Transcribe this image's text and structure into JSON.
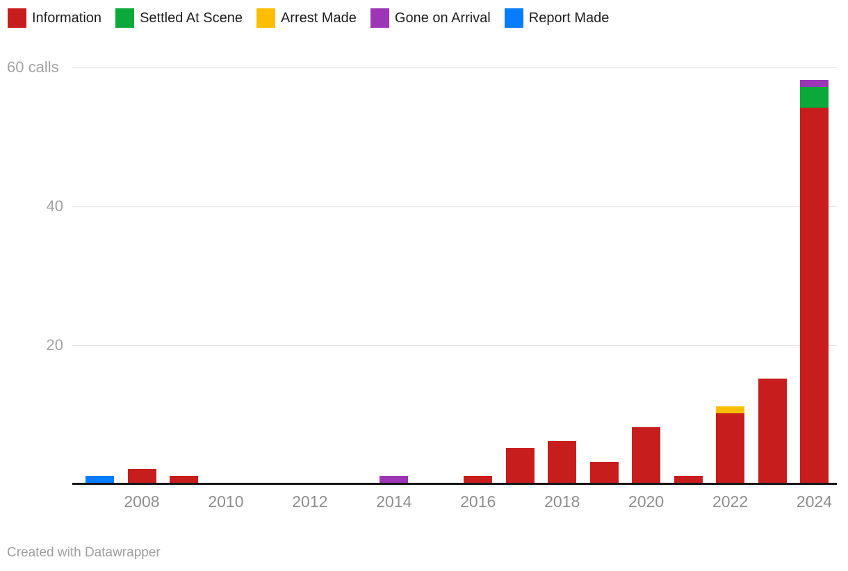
{
  "legend": {
    "items": [
      {
        "label": "Information",
        "color": "#c71d1d",
        "icon": "red-swatch-icon"
      },
      {
        "label": "Settled At Scene",
        "color": "#0ba83a",
        "icon": "green-swatch-icon"
      },
      {
        "label": "Arrest Made",
        "color": "#fdbe02",
        "icon": "yellow-swatch-icon"
      },
      {
        "label": "Gone on Arrival",
        "color": "#9c36b6",
        "icon": "purple-swatch-icon"
      },
      {
        "label": "Report Made",
        "color": "#077cfd",
        "icon": "blue-swatch-icon"
      }
    ]
  },
  "chart_data": {
    "type": "bar",
    "stacked": true,
    "title": "",
    "unit": "calls",
    "categories": [
      2007,
      2008,
      2009,
      2010,
      2011,
      2012,
      2013,
      2014,
      2015,
      2016,
      2017,
      2018,
      2019,
      2020,
      2021,
      2022,
      2023,
      2024
    ],
    "series": [
      {
        "name": "Information",
        "color": "#c71d1d",
        "values": [
          0,
          2,
          1,
          0,
          0,
          0,
          0,
          0,
          0,
          1,
          5,
          6,
          3,
          8,
          1,
          10,
          15,
          54
        ]
      },
      {
        "name": "Settled At Scene",
        "color": "#0ba83a",
        "values": [
          0,
          0,
          0,
          0,
          0,
          0,
          0,
          0,
          0,
          0,
          0,
          0,
          0,
          0,
          0,
          0,
          0,
          3
        ]
      },
      {
        "name": "Arrest Made",
        "color": "#fdbe02",
        "values": [
          0,
          0,
          0,
          0,
          0,
          0,
          0,
          0,
          0,
          0,
          0,
          0,
          0,
          0,
          0,
          1,
          0,
          0
        ]
      },
      {
        "name": "Gone on Arrival",
        "color": "#9c36b6",
        "values": [
          0,
          0,
          0,
          0,
          0,
          0,
          0,
          1,
          0,
          0,
          0,
          0,
          0,
          0,
          0,
          0,
          0,
          1
        ]
      },
      {
        "name": "Report Made",
        "color": "#077cfd",
        "values": [
          1,
          0,
          0,
          0,
          0,
          0,
          0,
          0,
          0,
          0,
          0,
          0,
          0,
          0,
          0,
          0,
          0,
          0
        ]
      }
    ],
    "ylim": [
      0,
      60
    ],
    "y_ticks": [
      {
        "value": 60,
        "label": "60 calls",
        "align": "left"
      },
      {
        "value": 40,
        "label": "40",
        "align": "right"
      },
      {
        "value": 20,
        "label": "20",
        "align": "right"
      }
    ],
    "x_tick_labels": [
      "2008",
      "2010",
      "2012",
      "2014",
      "2016",
      "2018",
      "2020",
      "2022",
      "2024"
    ],
    "grid": true,
    "legend_position": "top"
  },
  "footer": {
    "credit": "Created with Datawrapper"
  }
}
